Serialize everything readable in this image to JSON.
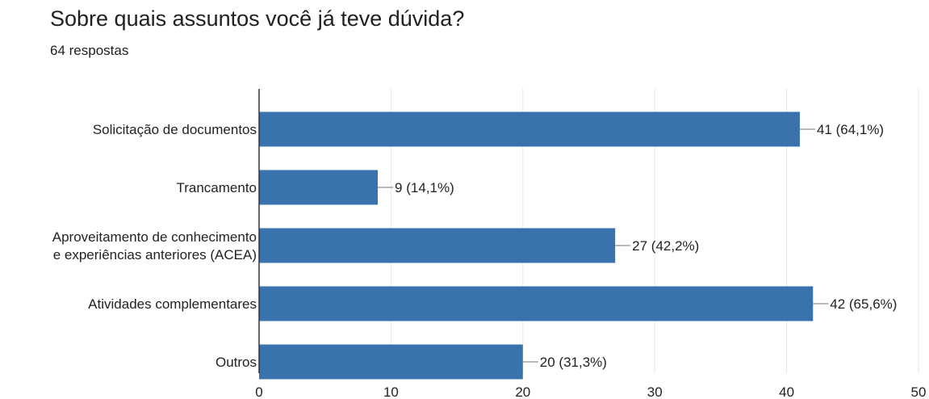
{
  "header": {
    "title": "Sobre quais assuntos você já teve dúvida?",
    "subtitle": "64 respostas"
  },
  "colors": {
    "bar": "#3a72ad",
    "grid": "#e6e6e6",
    "axis": "#333333",
    "text": "#222222"
  },
  "chart_data": {
    "type": "bar",
    "orientation": "horizontal",
    "title": "Sobre quais assuntos você já teve dúvida?",
    "subtitle": "64 respostas",
    "categories": [
      [
        "Solicitação de documentos"
      ],
      [
        "Trancamento"
      ],
      [
        "Aproveitamento de conhecimento",
        "e experiências anteriores (ACEA)"
      ],
      [
        "Atividades complementares"
      ],
      [
        "Outros"
      ]
    ],
    "values": [
      41,
      9,
      27,
      42,
      20
    ],
    "data_labels": [
      "41 (64,1%)",
      "9 (14,1%)",
      "27 (42,2%)",
      "42 (65,6%)",
      "20 (31,3%)"
    ],
    "xlim": [
      0,
      50
    ],
    "xticks": [
      0,
      10,
      20,
      30,
      40,
      50
    ],
    "grid": true,
    "legend": "none"
  }
}
